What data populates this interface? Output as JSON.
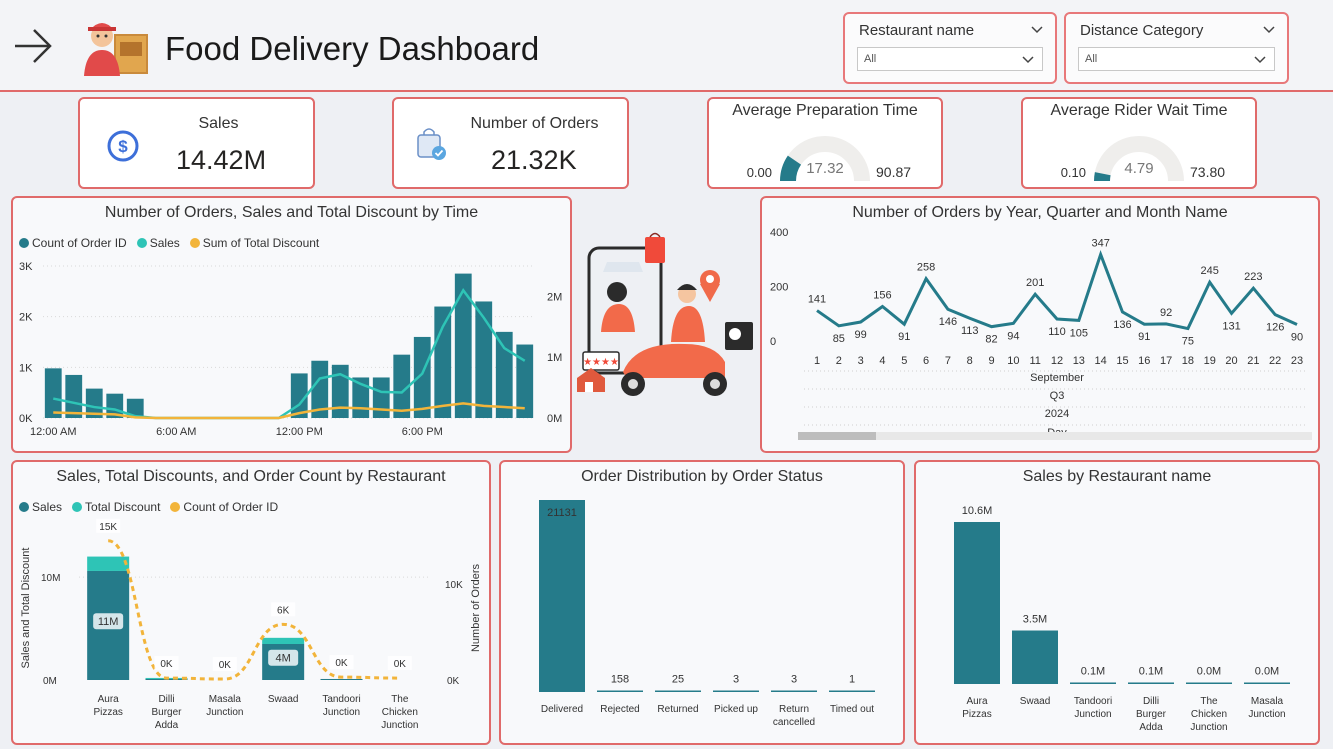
{
  "header": {
    "title": "Food Delivery Dashboard",
    "slicers": [
      {
        "label": "Restaurant name",
        "value": "All"
      },
      {
        "label": "Distance Category",
        "value": "All"
      }
    ]
  },
  "kpis": {
    "sales": {
      "label": "Sales",
      "value": "14.42M"
    },
    "orders": {
      "label": "Number of Orders",
      "value": "21.32K"
    },
    "prep_time": {
      "label": "Average Preparation Time",
      "min": "0.00",
      "value": "17.32",
      "max": "90.87",
      "min_num": 0,
      "value_num": 17.32,
      "max_num": 90.87
    },
    "rider_wait": {
      "label": "Average Rider Wait Time",
      "min": "0.10",
      "value": "4.79",
      "max": "73.80",
      "min_num": 0.1,
      "value_num": 4.79,
      "max_num": 73.8
    }
  },
  "colors": {
    "teal_dark": "#257b8a",
    "teal_light": "#2ec4b6",
    "gold": "#f2b43a",
    "border": "#e06a6a"
  },
  "chart_data": [
    {
      "type": "bar+line",
      "title": "Number of Orders, Sales and Total Discount by Time",
      "legend": [
        "Count of Order ID",
        "Sales",
        "Sum of Total Discount"
      ],
      "y_left_ticks": [
        "3K",
        "2K",
        "1K",
        "0K"
      ],
      "y_left_range": [
        0,
        3000
      ],
      "y_right_ticks": [
        "2M",
        "1M",
        "0M"
      ],
      "y_right_range": [
        0,
        2500000
      ],
      "x_ticks": [
        "12:00 AM",
        "6:00 AM",
        "12:00 PM",
        "6:00 PM"
      ],
      "hours": [
        0,
        1,
        2,
        3,
        4,
        5,
        6,
        7,
        8,
        9,
        10,
        11,
        12,
        13,
        14,
        15,
        16,
        17,
        18,
        19,
        20,
        21,
        22,
        23
      ],
      "orders": [
        980,
        850,
        580,
        480,
        380,
        0,
        0,
        0,
        0,
        0,
        0,
        0,
        880,
        1130,
        1050,
        800,
        800,
        1250,
        1600,
        2200,
        2850,
        2300,
        1700,
        1450
      ],
      "sales": [
        320000,
        250000,
        180000,
        140000,
        30000,
        0,
        0,
        0,
        0,
        0,
        0,
        0,
        220000,
        650000,
        720000,
        560000,
        430000,
        420000,
        730000,
        1500000,
        2100000,
        1650000,
        1150000,
        940000
      ],
      "discount": [
        90000,
        80000,
        70000,
        60000,
        10000,
        0,
        0,
        0,
        0,
        0,
        0,
        0,
        80000,
        140000,
        170000,
        160000,
        140000,
        120000,
        150000,
        200000,
        240000,
        200000,
        180000,
        160000
      ]
    },
    {
      "type": "line",
      "title": "Number of Orders by Year, Quarter and Month Name",
      "y_ticks": [
        "400",
        "200",
        "0"
      ],
      "y_range": [
        0,
        400
      ],
      "x": [
        "1",
        "2",
        "3",
        "4",
        "5",
        "6",
        "7",
        "8",
        "9",
        "10",
        "11",
        "12",
        "13",
        "14",
        "15",
        "16",
        "17",
        "18",
        "19",
        "20",
        "21",
        "22",
        "23"
      ],
      "values": [
        141,
        85,
        99,
        156,
        91,
        258,
        146,
        113,
        82,
        94,
        201,
        110,
        105,
        347,
        136,
        91,
        92,
        75,
        245,
        131,
        223,
        126,
        90
      ],
      "hierarchy": [
        "September",
        "Q3",
        "2024",
        "Day"
      ]
    },
    {
      "type": "stacked-bar+line",
      "title": "Sales, Total Discounts, and Order Count by Restaurant",
      "legend": [
        "Sales",
        "Total Discount",
        "Count of Order ID"
      ],
      "ylabel_left": "Sales and Total Discount",
      "ylabel_right": "Number of Orders",
      "y_left_ticks": [
        "10M",
        "0M"
      ],
      "y_right_ticks": [
        "10K",
        "0K"
      ],
      "categories": [
        "Aura Pizzas",
        "Dilli Burger Adda",
        "Masala Junction",
        "Swaad",
        "Tandoori Junction",
        "The Chicken Junction"
      ],
      "sales": [
        10.6,
        0.1,
        0.0,
        3.5,
        0.1,
        0.0
      ],
      "discount": [
        1.4,
        0.1,
        0.0,
        0.6,
        0.0,
        0.0
      ],
      "bar_labels": [
        "11M",
        "",
        "",
        "4M",
        "",
        ""
      ],
      "order_labels": [
        "15K",
        "0K",
        "0K",
        "6K",
        "0K",
        "0K"
      ],
      "orders": [
        14.5,
        0.2,
        0.1,
        5.8,
        0.3,
        0.2
      ]
    },
    {
      "type": "bar",
      "title": "Order Distribution by Order Status",
      "categories": [
        "Delivered",
        "Rejected",
        "Returned",
        "Picked up",
        "Return cancelled",
        "Timed out"
      ],
      "values": [
        21131,
        158,
        25,
        3,
        3,
        1
      ],
      "labels": [
        "21131",
        "158",
        "25",
        "3",
        "3",
        "1"
      ]
    },
    {
      "type": "bar",
      "title": "Sales by Restaurant name",
      "categories": [
        "Aura Pizzas",
        "Swaad",
        "Tandoori Junction",
        "Dilli Burger Adda",
        "The Chicken Junction",
        "Masala Junction"
      ],
      "values": [
        10.6,
        3.5,
        0.1,
        0.1,
        0.0,
        0.0
      ],
      "labels": [
        "10.6M",
        "3.5M",
        "0.1M",
        "0.1M",
        "0.0M",
        "0.0M"
      ]
    }
  ]
}
